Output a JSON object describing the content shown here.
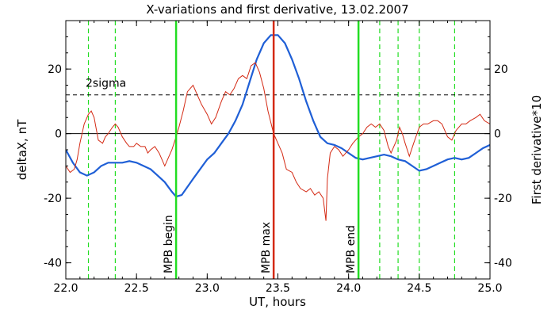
{
  "chart_data": {
    "type": "line",
    "title": "X-variations and first derivative, 13.02.2007",
    "xlabel": "UT, hours",
    "ylabel_left": "deltaX, nT",
    "ylabel_right": "First derivative*10",
    "xlim": [
      22.0,
      25.0
    ],
    "ylim": [
      -45,
      35
    ],
    "x_ticks": [
      22.0,
      22.5,
      23.0,
      23.5,
      24.0,
      24.5,
      25.0
    ],
    "x_tick_labels": [
      "22.0",
      "22.5",
      "23.0",
      "23.5",
      "24.0",
      "24.5",
      "25.0"
    ],
    "y_ticks": [
      -40,
      -20,
      0,
      20
    ],
    "y_tick_labels": [
      "-40",
      "-20",
      "0",
      "20"
    ],
    "colors": {
      "deltaX": "#1f5fd6",
      "derivative": "#d42a14",
      "mpb_boundary": "#22dd22",
      "mpb_max": "#d42a14",
      "axis": "#000000"
    },
    "threshold": {
      "label": "2sigma",
      "value": 12
    },
    "zero_line": 0,
    "vertical_markers": [
      {
        "label": "MPB begin",
        "x": 22.78,
        "style": "solid",
        "color": "#22dd22"
      },
      {
        "label": "MPB max",
        "x": 23.47,
        "style": "solid",
        "color": "#d42a14"
      },
      {
        "label": "MPB end",
        "x": 24.07,
        "style": "solid",
        "color": "#22dd22"
      }
    ],
    "dashed_markers": [
      22.16,
      22.35,
      24.22,
      24.35,
      24.5,
      24.75
    ],
    "series": [
      {
        "name": "deltaX, nT",
        "color": "#1f5fd6",
        "points": [
          [
            22.0,
            -5
          ],
          [
            22.05,
            -9
          ],
          [
            22.1,
            -12
          ],
          [
            22.15,
            -13
          ],
          [
            22.2,
            -12
          ],
          [
            22.25,
            -10
          ],
          [
            22.3,
            -9
          ],
          [
            22.35,
            -9
          ],
          [
            22.4,
            -9
          ],
          [
            22.45,
            -8.5
          ],
          [
            22.5,
            -9
          ],
          [
            22.55,
            -10
          ],
          [
            22.6,
            -11
          ],
          [
            22.65,
            -13
          ],
          [
            22.7,
            -15
          ],
          [
            22.75,
            -18
          ],
          [
            22.78,
            -19.5
          ],
          [
            22.82,
            -19
          ],
          [
            22.9,
            -14
          ],
          [
            23.0,
            -8
          ],
          [
            23.05,
            -6
          ],
          [
            23.1,
            -3
          ],
          [
            23.15,
            0
          ],
          [
            23.2,
            4
          ],
          [
            23.25,
            9
          ],
          [
            23.3,
            16
          ],
          [
            23.35,
            23
          ],
          [
            23.4,
            28
          ],
          [
            23.45,
            30.5
          ],
          [
            23.5,
            30.5
          ],
          [
            23.55,
            28
          ],
          [
            23.6,
            23
          ],
          [
            23.65,
            17
          ],
          [
            23.7,
            10
          ],
          [
            23.75,
            4
          ],
          [
            23.8,
            -1
          ],
          [
            23.85,
            -3
          ],
          [
            23.9,
            -3.5
          ],
          [
            23.95,
            -4.5
          ],
          [
            24.0,
            -6
          ],
          [
            24.05,
            -7.5
          ],
          [
            24.1,
            -8
          ],
          [
            24.15,
            -7.5
          ],
          [
            24.2,
            -7
          ],
          [
            24.25,
            -6.5
          ],
          [
            24.3,
            -7
          ],
          [
            24.35,
            -8
          ],
          [
            24.4,
            -8.5
          ],
          [
            24.45,
            -10
          ],
          [
            24.5,
            -11.5
          ],
          [
            24.55,
            -11
          ],
          [
            24.6,
            -10
          ],
          [
            24.65,
            -9
          ],
          [
            24.7,
            -8
          ],
          [
            24.75,
            -7.5
          ],
          [
            24.8,
            -8
          ],
          [
            24.85,
            -7.5
          ],
          [
            24.9,
            -6
          ],
          [
            24.95,
            -4.5
          ],
          [
            25.0,
            -3.5
          ]
        ]
      },
      {
        "name": "First derivative*10",
        "color": "#d42a14",
        "points": [
          [
            22.0,
            -10
          ],
          [
            22.03,
            -12
          ],
          [
            22.06,
            -11
          ],
          [
            22.08,
            -8
          ],
          [
            22.1,
            -3
          ],
          [
            22.13,
            3
          ],
          [
            22.16,
            6
          ],
          [
            22.18,
            7
          ],
          [
            22.2,
            5
          ],
          [
            22.23,
            -2
          ],
          [
            22.26,
            -3
          ],
          [
            22.28,
            -1
          ],
          [
            22.3,
            0
          ],
          [
            22.33,
            2
          ],
          [
            22.35,
            3
          ],
          [
            22.37,
            2
          ],
          [
            22.4,
            -1
          ],
          [
            22.43,
            -3
          ],
          [
            22.45,
            -4
          ],
          [
            22.48,
            -4
          ],
          [
            22.5,
            -3
          ],
          [
            22.53,
            -4
          ],
          [
            22.56,
            -4
          ],
          [
            22.58,
            -6
          ],
          [
            22.6,
            -5
          ],
          [
            22.63,
            -4
          ],
          [
            22.66,
            -6
          ],
          [
            22.7,
            -10
          ],
          [
            22.72,
            -8
          ],
          [
            22.75,
            -5
          ],
          [
            22.78,
            -1
          ],
          [
            22.8,
            2
          ],
          [
            22.83,
            7
          ],
          [
            22.86,
            13
          ],
          [
            22.9,
            15
          ],
          [
            22.93,
            12
          ],
          [
            22.96,
            9
          ],
          [
            23.0,
            6
          ],
          [
            23.03,
            3
          ],
          [
            23.06,
            5
          ],
          [
            23.1,
            10
          ],
          [
            23.13,
            13
          ],
          [
            23.16,
            12
          ],
          [
            23.19,
            14
          ],
          [
            23.22,
            17
          ],
          [
            23.25,
            18
          ],
          [
            23.28,
            17
          ],
          [
            23.31,
            21
          ],
          [
            23.34,
            22
          ],
          [
            23.37,
            19
          ],
          [
            23.4,
            14
          ],
          [
            23.43,
            7
          ],
          [
            23.47,
            0
          ],
          [
            23.5,
            -3
          ],
          [
            23.53,
            -6
          ],
          [
            23.56,
            -11
          ],
          [
            23.6,
            -12
          ],
          [
            23.63,
            -15
          ],
          [
            23.66,
            -17
          ],
          [
            23.7,
            -18
          ],
          [
            23.73,
            -17
          ],
          [
            23.76,
            -19
          ],
          [
            23.79,
            -18
          ],
          [
            23.82,
            -20
          ],
          [
            23.84,
            -27
          ],
          [
            23.85,
            -14
          ],
          [
            23.87,
            -6
          ],
          [
            23.9,
            -4
          ],
          [
            23.93,
            -5
          ],
          [
            23.96,
            -7
          ],
          [
            24.0,
            -5
          ],
          [
            24.03,
            -3
          ],
          [
            24.07,
            -1
          ],
          [
            24.1,
            0
          ],
          [
            24.13,
            2
          ],
          [
            24.16,
            3
          ],
          [
            24.19,
            2
          ],
          [
            24.22,
            3
          ],
          [
            24.25,
            1
          ],
          [
            24.28,
            -4
          ],
          [
            24.3,
            -6
          ],
          [
            24.32,
            -4
          ],
          [
            24.34,
            -2
          ],
          [
            24.36,
            2
          ],
          [
            24.38,
            0
          ],
          [
            24.4,
            -3
          ],
          [
            24.43,
            -7
          ],
          [
            24.46,
            -3
          ],
          [
            24.5,
            2
          ],
          [
            24.53,
            3
          ],
          [
            24.56,
            3
          ],
          [
            24.6,
            4
          ],
          [
            24.63,
            4
          ],
          [
            24.66,
            3
          ],
          [
            24.7,
            -1
          ],
          [
            24.73,
            -2
          ],
          [
            24.76,
            1
          ],
          [
            24.8,
            3
          ],
          [
            24.83,
            3
          ],
          [
            24.86,
            4
          ],
          [
            24.9,
            5
          ],
          [
            24.93,
            6
          ],
          [
            24.96,
            4
          ],
          [
            25.0,
            3
          ]
        ]
      }
    ]
  }
}
